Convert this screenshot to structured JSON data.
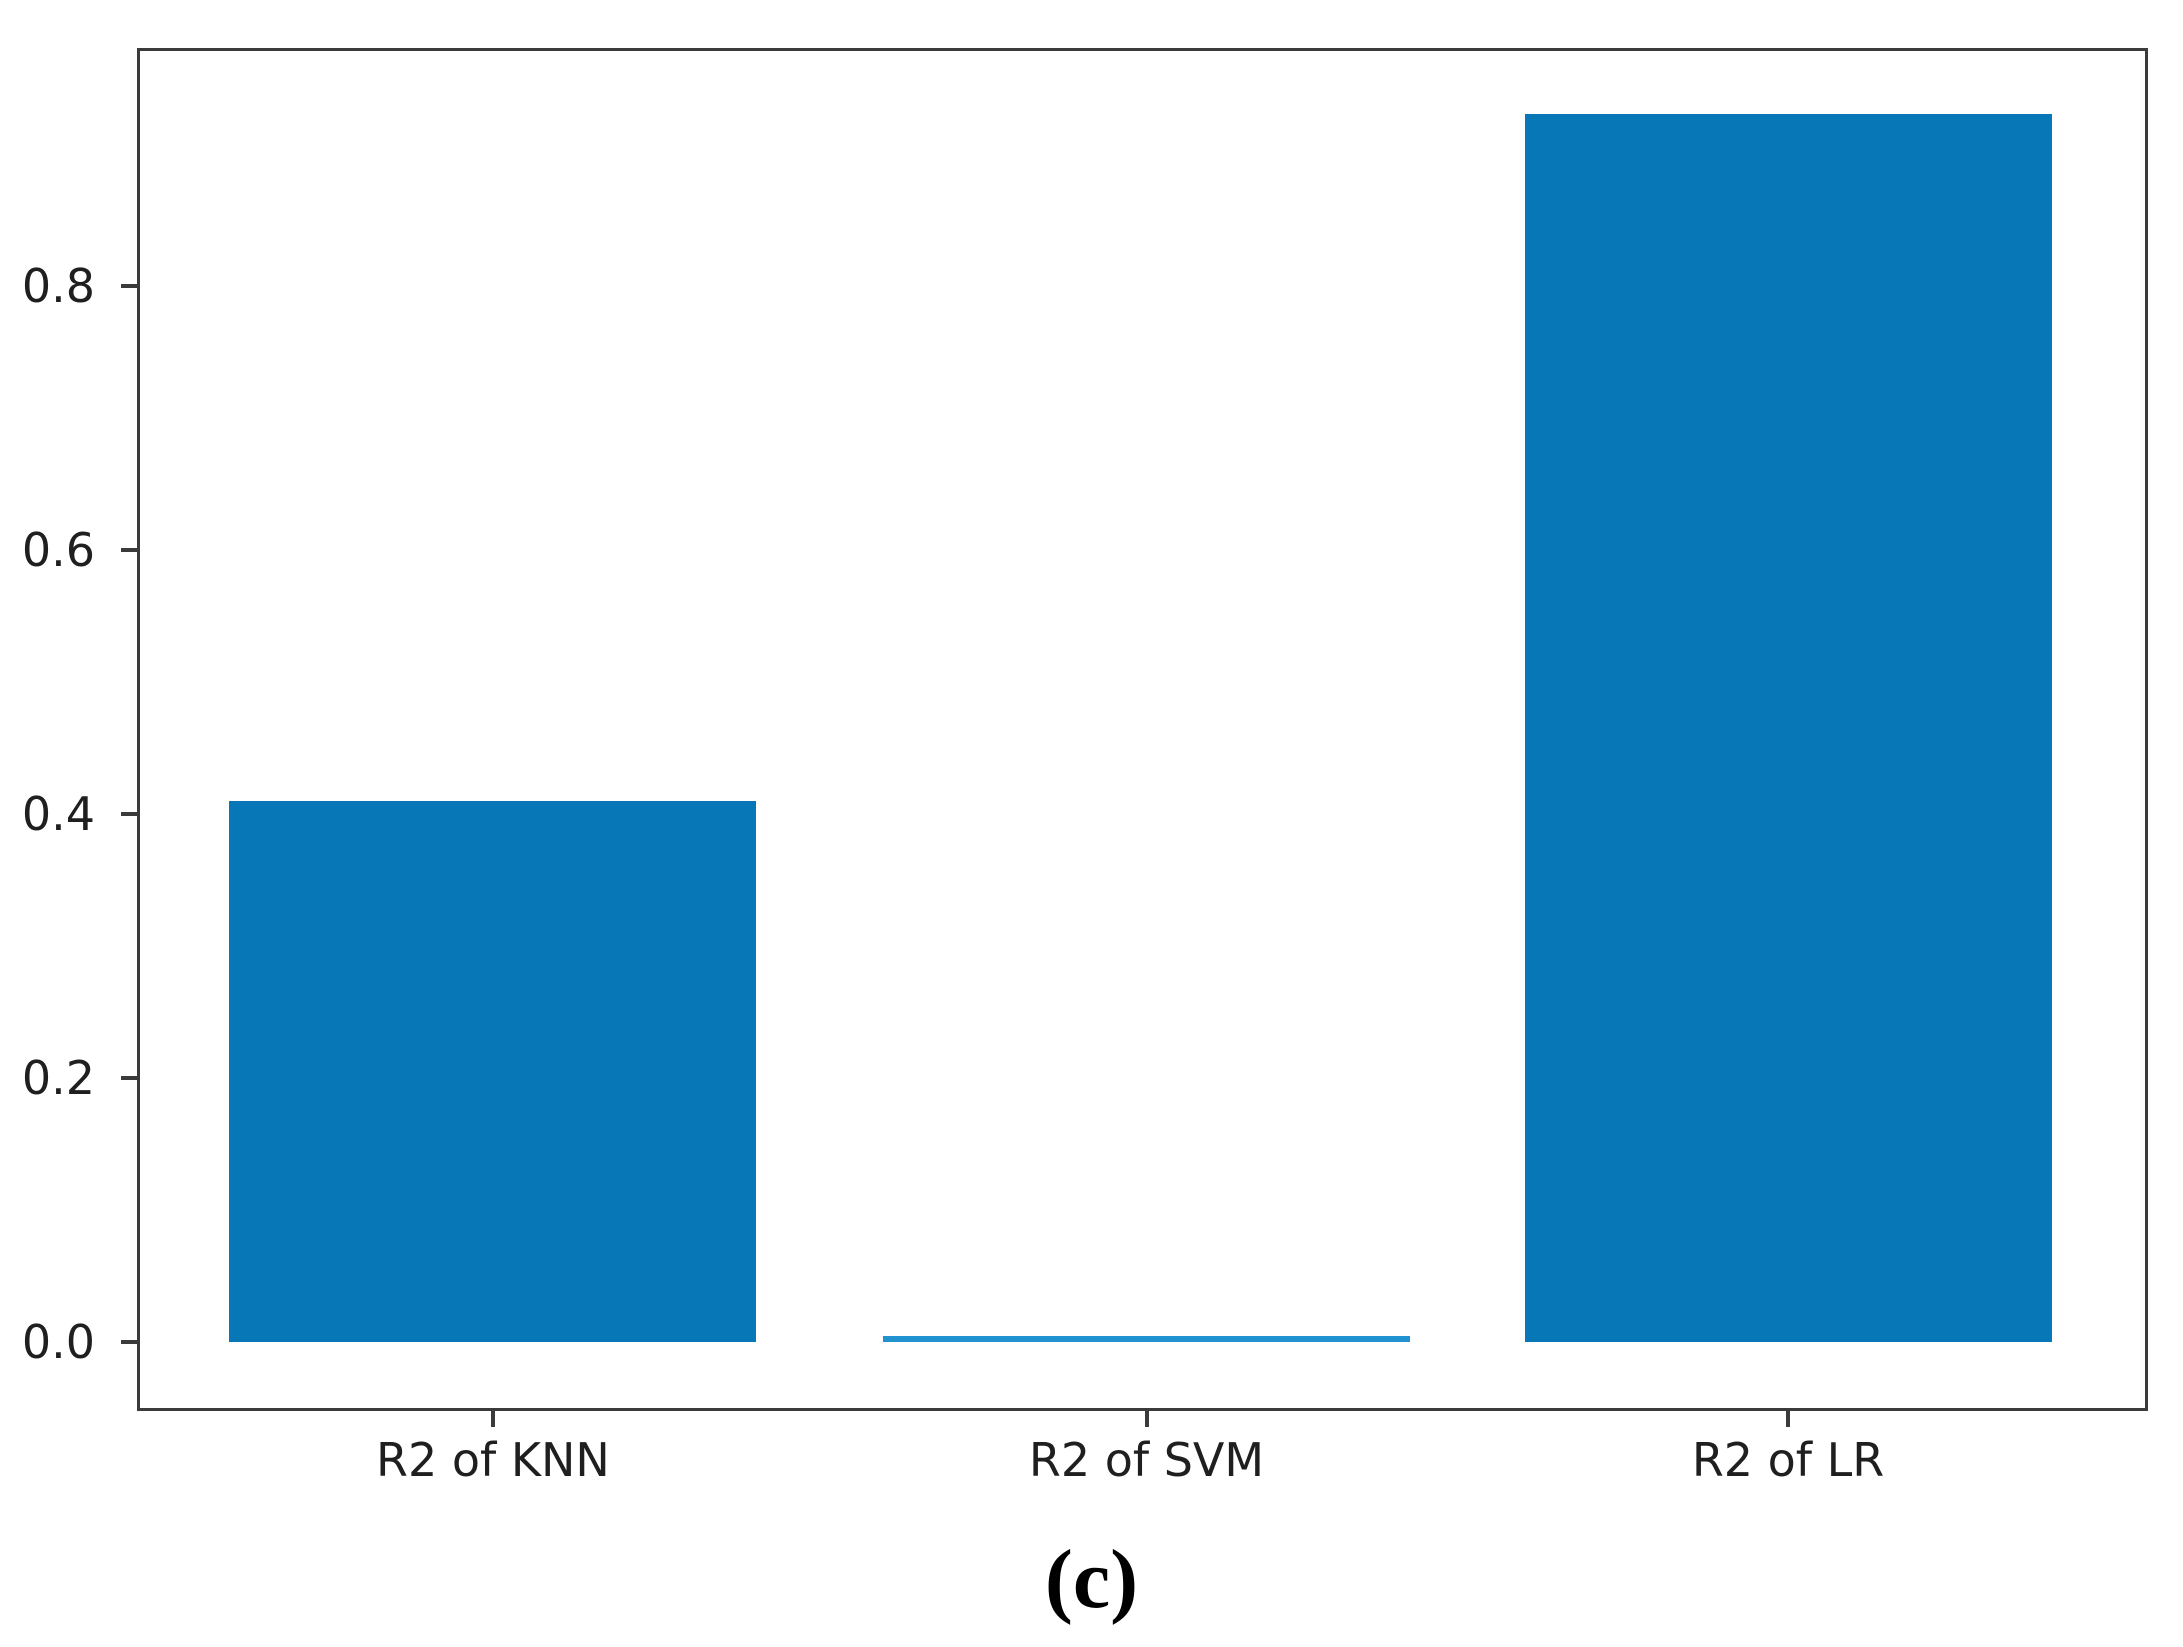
{
  "figure": {
    "caption": "(c)",
    "background": "#ffffff"
  },
  "chart_data": {
    "type": "bar",
    "title": "",
    "xlabel": "",
    "ylabel": "",
    "categories": [
      "R2 of KNN",
      "R2 of SVM",
      "R2 of LR"
    ],
    "values": [
      0.41,
      0.004,
      0.93
    ],
    "yticks": [
      0.0,
      0.2,
      0.4,
      0.6,
      0.8
    ],
    "ylim": [
      0,
      0.98
    ],
    "grid": false,
    "legend": "none",
    "bar_colors": [
      "#0877b8",
      "#2191d0",
      "#0877b8"
    ],
    "spine_color": "#3b3b3b",
    "tick_color": "#3b3b3b",
    "text_color": "#1f1f1f"
  }
}
